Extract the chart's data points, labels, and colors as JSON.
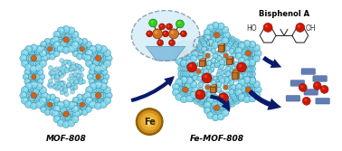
{
  "background_color": "#ffffff",
  "label_mof808": "MOF-808",
  "label_femof808": "Fe-MOF-808",
  "label_bisphenol": "Bisphenol A",
  "figsize": [
    3.78,
    1.67
  ],
  "dpi": 100,
  "mof_color_light": "#7dd4e8",
  "mof_color_mid": "#4ab8d4",
  "mof_color_dark": "#2a8aaa",
  "mof_edge": "#1a5a7a",
  "node_orange": "#d86010",
  "node_dark": "#8a3000",
  "fe_gold": "#c89010",
  "fe_gold2": "#e0b030",
  "fe_shadow": "#7a5000",
  "arrow_color": "#0a1a6a",
  "red_color": "#cc1800",
  "green_color": "#22cc00",
  "blue_rod": "#4466aa",
  "bpa_gray": "#444444",
  "label_fs": 6.5,
  "label_fw": "bold",
  "inset_bg": "#ddeeff",
  "inset_edge": "#889aaa"
}
